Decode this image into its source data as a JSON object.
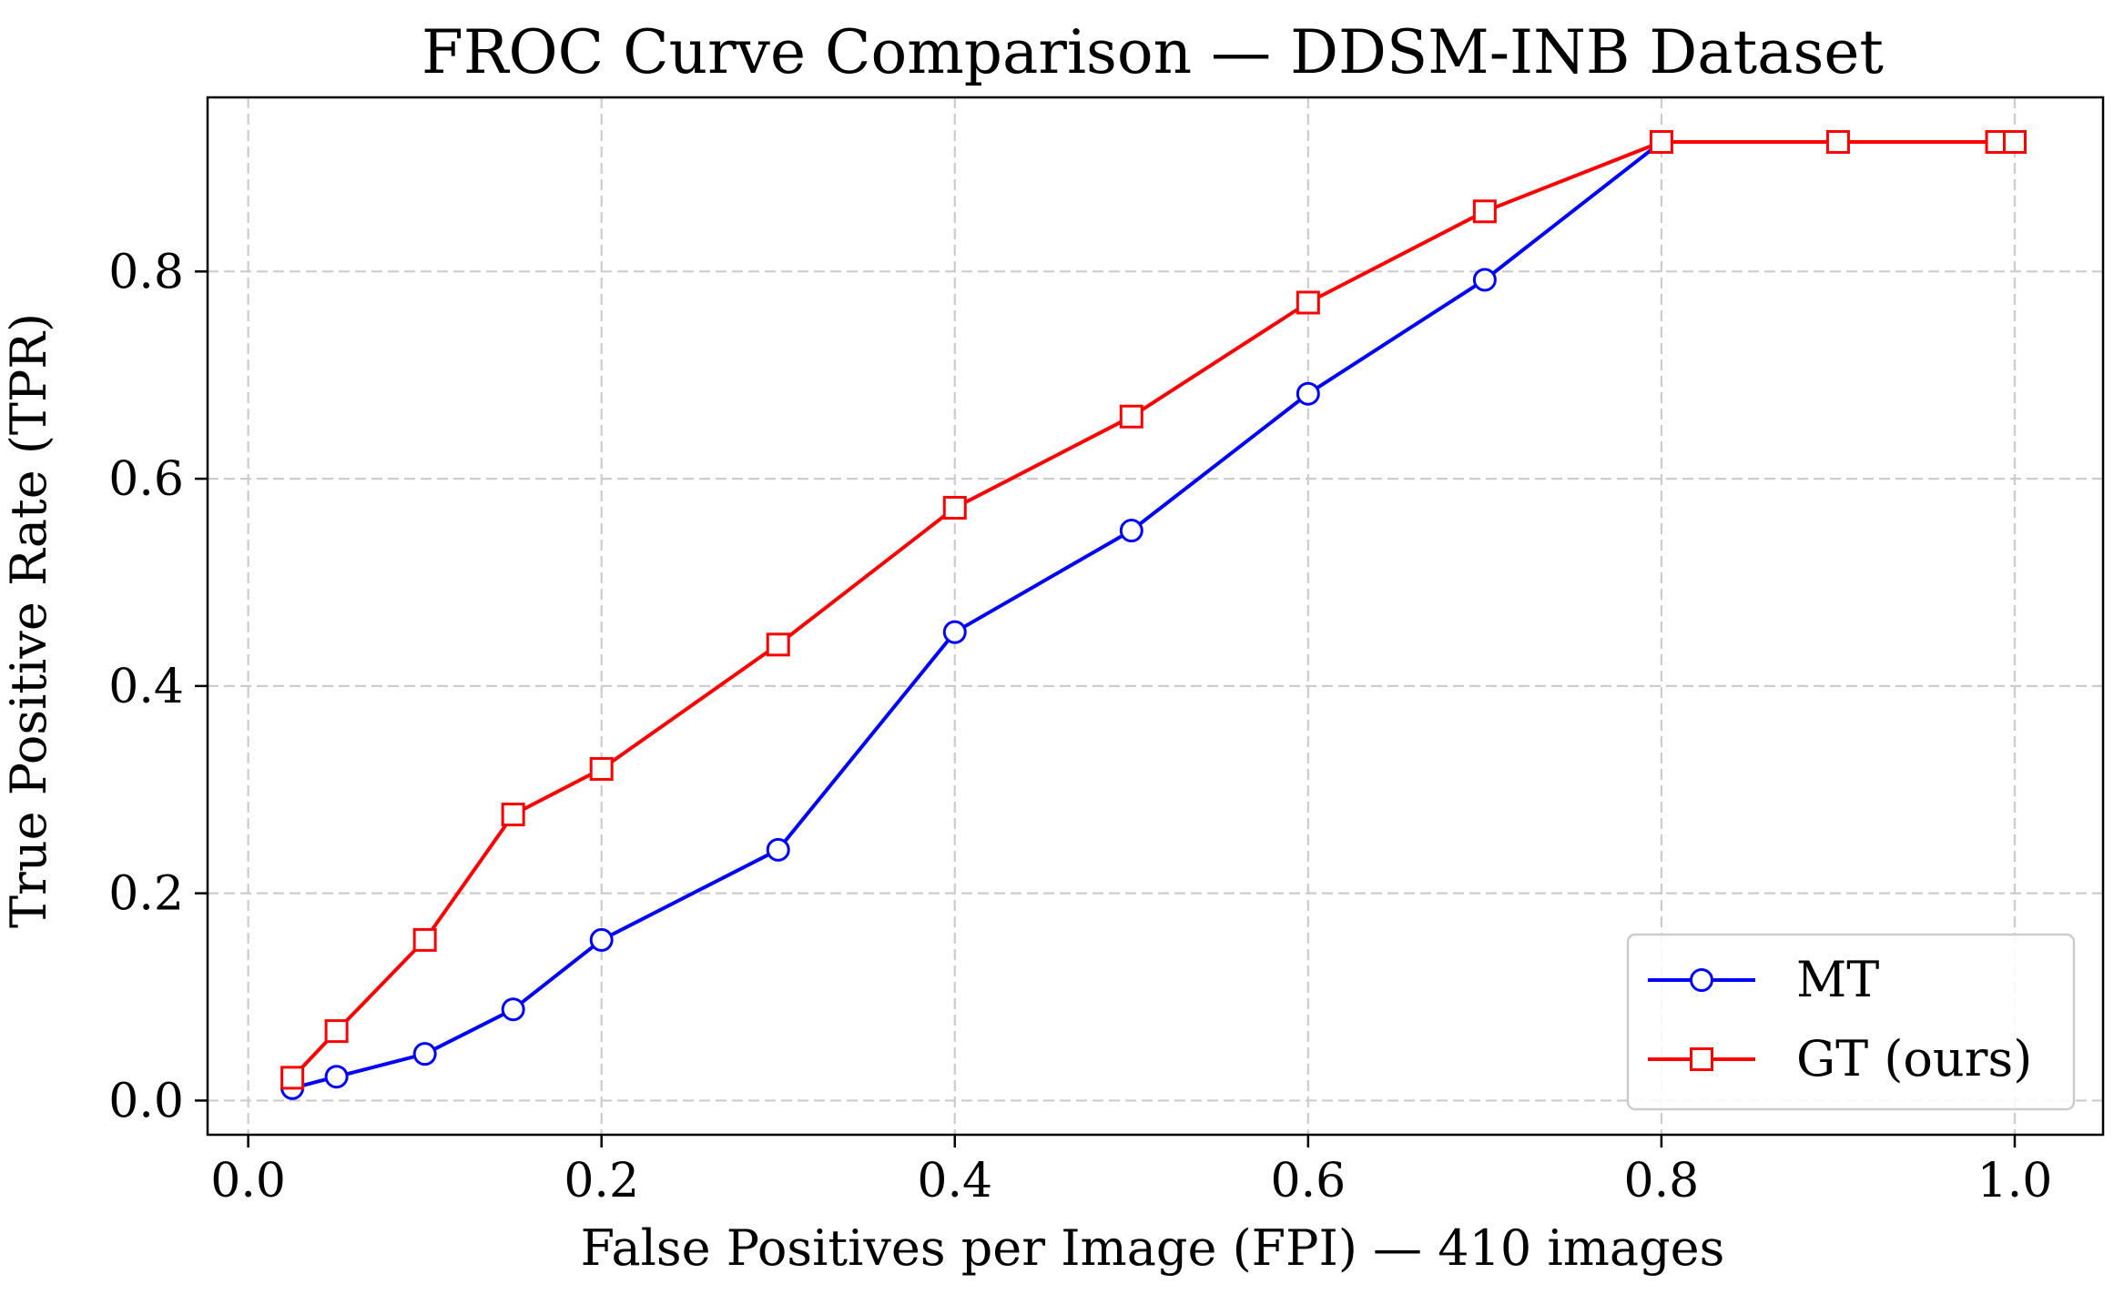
{
  "chart_data": {
    "type": "line",
    "title": "FROC Curve Comparison — DDSM-INB Dataset",
    "xlabel": "False Positives per Image (FPI) — 410 images",
    "ylabel": "True Positive Rate (TPR)",
    "xlim": [
      -0.023,
      1.05
    ],
    "ylim": [
      -0.033,
      0.968
    ],
    "xticks": [
      0.0,
      0.2,
      0.4,
      0.6,
      0.8,
      1.0
    ],
    "xtick_labels": [
      "0.0",
      "0.2",
      "0.4",
      "0.6",
      "0.8",
      "1.0"
    ],
    "yticks": [
      0.0,
      0.2,
      0.4,
      0.6,
      0.8
    ],
    "ytick_labels": [
      "0.0",
      "0.2",
      "0.4",
      "0.6",
      "0.8"
    ],
    "grid": true,
    "legend_position": "lower-right",
    "series": [
      {
        "name": "MT",
        "color": "#0000ff",
        "marker": "circle",
        "x": [
          0.025,
          0.05,
          0.1,
          0.15,
          0.2,
          0.3,
          0.4,
          0.5,
          0.6,
          0.7,
          0.8,
          0.9,
          0.99,
          1.0
        ],
        "y": [
          0.012,
          0.023,
          0.045,
          0.088,
          0.155,
          0.242,
          0.452,
          0.55,
          0.682,
          0.792,
          0.925,
          0.925,
          0.925,
          0.925
        ]
      },
      {
        "name": "GT (ours)",
        "color": "#ff0000",
        "marker": "square",
        "x": [
          0.025,
          0.05,
          0.1,
          0.15,
          0.2,
          0.3,
          0.4,
          0.5,
          0.6,
          0.7,
          0.8,
          0.9,
          0.99,
          1.0
        ],
        "y": [
          0.022,
          0.067,
          0.155,
          0.276,
          0.32,
          0.44,
          0.572,
          0.66,
          0.77,
          0.858,
          0.925,
          0.925,
          0.925,
          0.925
        ]
      }
    ]
  }
}
